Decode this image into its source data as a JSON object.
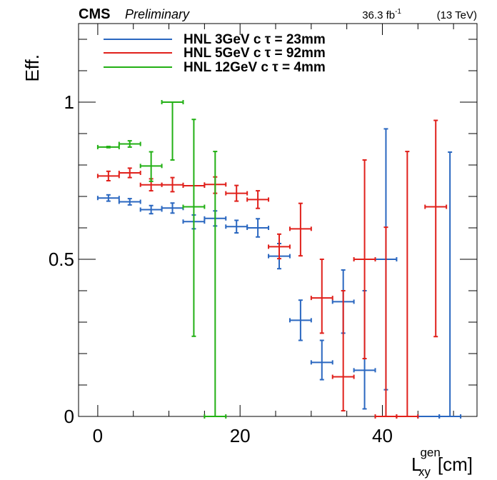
{
  "header": {
    "experiment": "CMS",
    "status": "Preliminary",
    "lumi_value": "36.3 fb",
    "lumi_exp": "-1",
    "energy": "(13 TeV)"
  },
  "chart_data": {
    "type": "scatter",
    "ylabel": "Eff.",
    "xlabel_main": "L",
    "xlabel_sup": "gen",
    "xlabel_sub": "xy",
    "xlabel_unit": "[cm]",
    "xlim": [
      -2.7,
      53.3
    ],
    "ylim": [
      0,
      1.25
    ],
    "x_ticks": [
      0,
      20,
      40
    ],
    "y_ticks": [
      0,
      0.5,
      1
    ],
    "y_tick_labels": [
      "0",
      "0.5",
      "1"
    ],
    "legend_position": "top-left",
    "series": [
      {
        "name": "HNL 3GeV c τ = 23mm",
        "color": "#2a67c0",
        "points": [
          {
            "x": 1.5,
            "xerr": 1.5,
            "y": 0.695,
            "ylo": 0.685,
            "yhi": 0.705
          },
          {
            "x": 4.5,
            "xerr": 1.5,
            "y": 0.683,
            "ylo": 0.673,
            "yhi": 0.693
          },
          {
            "x": 7.5,
            "xerr": 1.5,
            "y": 0.658,
            "ylo": 0.645,
            "yhi": 0.671
          },
          {
            "x": 10.5,
            "xerr": 1.5,
            "y": 0.663,
            "ylo": 0.647,
            "yhi": 0.679
          },
          {
            "x": 13.5,
            "xerr": 1.5,
            "y": 0.62,
            "ylo": 0.597,
            "yhi": 0.641
          },
          {
            "x": 16.5,
            "xerr": 1.5,
            "y": 0.63,
            "ylo": 0.606,
            "yhi": 0.654
          },
          {
            "x": 19.5,
            "xerr": 1.5,
            "y": 0.604,
            "ylo": 0.584,
            "yhi": 0.624
          },
          {
            "x": 22.5,
            "xerr": 1.5,
            "y": 0.6,
            "ylo": 0.571,
            "yhi": 0.629
          },
          {
            "x": 25.5,
            "xerr": 1.5,
            "y": 0.51,
            "ylo": 0.47,
            "yhi": 0.55
          },
          {
            "x": 28.5,
            "xerr": 1.5,
            "y": 0.306,
            "ylo": 0.242,
            "yhi": 0.37
          },
          {
            "x": 31.5,
            "xerr": 1.5,
            "y": 0.172,
            "ylo": 0.117,
            "yhi": 0.242
          },
          {
            "x": 34.5,
            "xerr": 1.5,
            "y": 0.365,
            "ylo": 0.265,
            "yhi": 0.466
          },
          {
            "x": 37.5,
            "xerr": 1.5,
            "y": 0.147,
            "ylo": 0.024,
            "yhi": 0.4
          },
          {
            "x": 40.5,
            "xerr": 1.5,
            "y": 0.5,
            "ylo": 0.085,
            "yhi": 0.915
          },
          {
            "x": 49.5,
            "xerr": 1.5,
            "y": 0.0,
            "ylo": 0.0,
            "yhi": 0.841
          },
          {
            "x": 46.5,
            "xerr": 1.5,
            "y": 0.0,
            "ylo": 0.0,
            "yhi": 0.0
          }
        ]
      },
      {
        "name": "HNL 5GeV c τ = 92mm",
        "color": "#e0201b",
        "points": [
          {
            "x": 1.5,
            "xerr": 1.5,
            "y": 0.765,
            "ylo": 0.75,
            "yhi": 0.78
          },
          {
            "x": 4.5,
            "xerr": 1.5,
            "y": 0.775,
            "ylo": 0.76,
            "yhi": 0.79
          },
          {
            "x": 7.5,
            "xerr": 1.5,
            "y": 0.737,
            "ylo": 0.718,
            "yhi": 0.756
          },
          {
            "x": 10.5,
            "xerr": 1.5,
            "y": 0.737,
            "ylo": 0.715,
            "yhi": 0.76
          },
          {
            "x": 13.5,
            "xerr": 1.5,
            "y": 0.734,
            "ylo": 0.734,
            "yhi": 0.734
          },
          {
            "x": 16.5,
            "xerr": 1.5,
            "y": 0.738,
            "ylo": 0.71,
            "yhi": 0.762
          },
          {
            "x": 19.5,
            "xerr": 1.5,
            "y": 0.71,
            "ylo": 0.685,
            "yhi": 0.735
          },
          {
            "x": 22.5,
            "xerr": 1.5,
            "y": 0.69,
            "ylo": 0.662,
            "yhi": 0.718
          },
          {
            "x": 25.5,
            "xerr": 1.5,
            "y": 0.54,
            "ylo": 0.502,
            "yhi": 0.58
          },
          {
            "x": 28.5,
            "xerr": 1.5,
            "y": 0.597,
            "ylo": 0.511,
            "yhi": 0.678
          },
          {
            "x": 31.5,
            "xerr": 1.5,
            "y": 0.377,
            "ylo": 0.265,
            "yhi": 0.5
          },
          {
            "x": 34.5,
            "xerr": 1.5,
            "y": 0.126,
            "ylo": 0.018,
            "yhi": 0.4
          },
          {
            "x": 37.5,
            "xerr": 1.5,
            "y": 0.5,
            "ylo": 0.184,
            "yhi": 0.816
          },
          {
            "x": 40.5,
            "xerr": 1.5,
            "y": 0.0,
            "ylo": 0.0,
            "yhi": 0.602
          },
          {
            "x": 43.5,
            "xerr": 1.5,
            "y": 0.0,
            "ylo": 0.0,
            "yhi": 0.843
          },
          {
            "x": 47.5,
            "xerr": 1.5,
            "y": 0.667,
            "ylo": 0.254,
            "yhi": 0.942
          }
        ]
      },
      {
        "name": "HNL 12GeV c τ = 4mm",
        "color": "#22b014",
        "points": [
          {
            "x": 1.5,
            "xerr": 1.5,
            "y": 0.857,
            "ylo": 0.855,
            "yhi": 0.859
          },
          {
            "x": 4.5,
            "xerr": 1.5,
            "y": 0.867,
            "ylo": 0.857,
            "yhi": 0.877
          },
          {
            "x": 7.5,
            "xerr": 1.5,
            "y": 0.797,
            "ylo": 0.748,
            "yhi": 0.842
          },
          {
            "x": 10.5,
            "xerr": 1.5,
            "y": 1.0,
            "ylo": 0.816,
            "yhi": 1.0
          },
          {
            "x": 13.5,
            "xerr": 1.5,
            "y": 0.667,
            "ylo": 0.255,
            "yhi": 0.945
          },
          {
            "x": 16.5,
            "xerr": 1.5,
            "y": 0.0,
            "ylo": 0.0,
            "yhi": 0.843
          }
        ]
      }
    ]
  }
}
